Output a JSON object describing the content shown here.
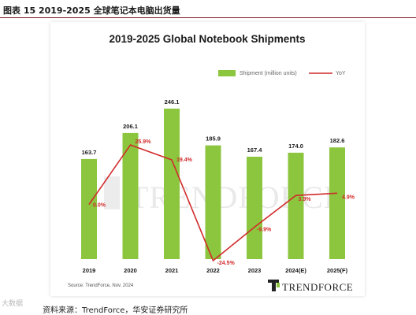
{
  "figure_caption": "图表 15 2019-2025 全球笔记本电脑出货量",
  "source_line": "资料来源：TrendForce，华安证券研究所",
  "corner_mark": "大数据",
  "watermark": "TRENDFORCE",
  "brand_logo": "TRENDFORCE",
  "colors": {
    "bar": "#8cc63f",
    "line": "#d12a2a",
    "rule": "#7a1e22"
  },
  "chart_data": {
    "type": "bar",
    "title": "2019-2025 Global Notebook Shipments",
    "categories": [
      "2019",
      "2020",
      "2021",
      "2022",
      "2023",
      "2024(E)",
      "2025(F)"
    ],
    "series": [
      {
        "name": "Shipment (million units)",
        "type": "bar",
        "values": [
          163.7,
          206.1,
          246.1,
          185.9,
          167.4,
          174.0,
          182.6
        ],
        "labels": [
          "163.7",
          "206.1",
          "246.1",
          "185.9",
          "167.4",
          "174.0",
          "182.6"
        ]
      },
      {
        "name": "YoY",
        "type": "line",
        "values": [
          0.0,
          25.9,
          19.4,
          -24.5,
          -9.9,
          3.9,
          4.9
        ],
        "labels": [
          "0.0%",
          "25.9%",
          "19.4%",
          "-24.5%",
          "-9.9%",
          "3.9%",
          "4.9%"
        ]
      }
    ],
    "ylim": [
      0,
      300
    ],
    "y2lim": [
      -30,
      40
    ],
    "grid": false,
    "legend": "top-right",
    "source": "Source: TrendForce, Nov. 2024"
  }
}
